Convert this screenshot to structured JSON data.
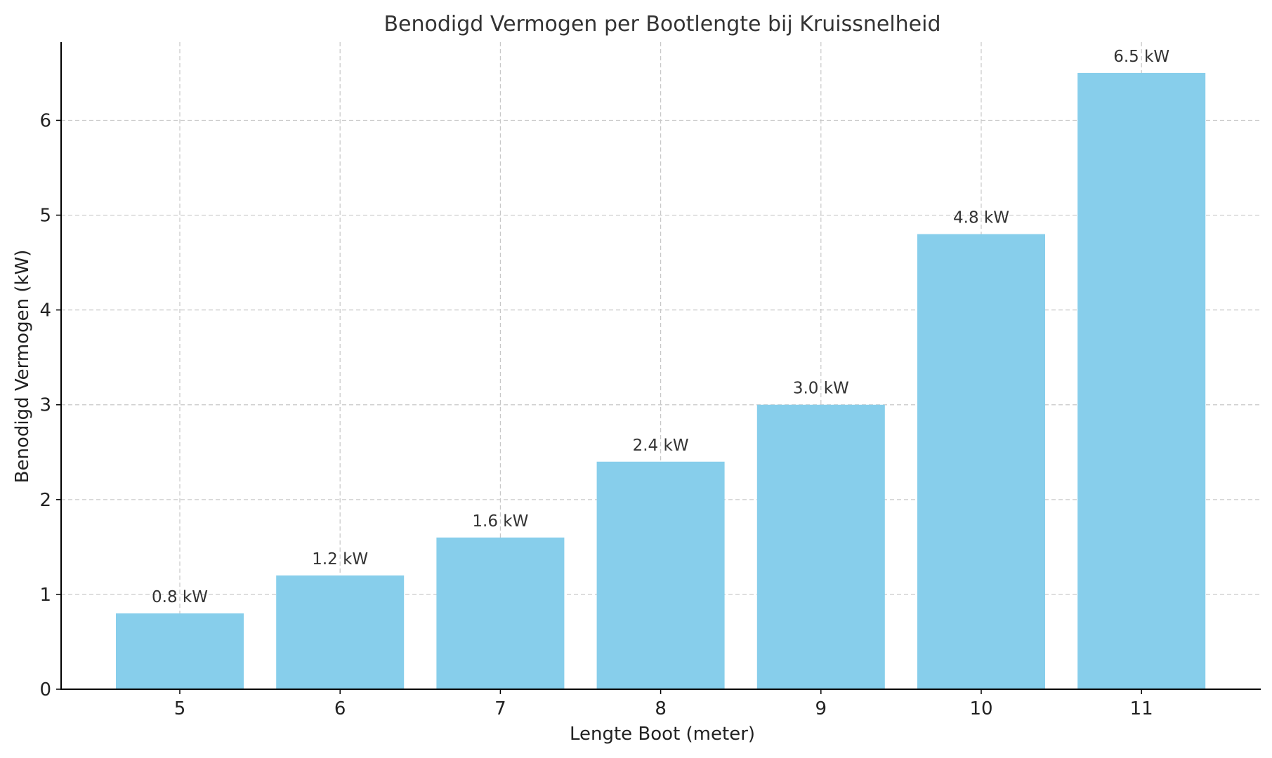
{
  "chart_data": {
    "type": "bar",
    "title": "Benodigd Vermogen per Bootlengte bij Kruissnelheid",
    "xlabel": "Lengte Boot (meter)",
    "ylabel": "Benodigd Vermogen (kW)",
    "categories": [
      "5",
      "6",
      "7",
      "8",
      "9",
      "10",
      "11"
    ],
    "values": [
      0.8,
      1.2,
      1.6,
      2.4,
      3.0,
      4.8,
      6.5
    ],
    "data_labels": [
      "0.8 kW",
      "1.2 kW",
      "1.6 kW",
      "2.4 kW",
      "3.0 kW",
      "4.8 kW",
      "6.5 kW"
    ],
    "yticks": [
      0,
      1,
      2,
      3,
      4,
      5,
      6
    ],
    "ylim": [
      0,
      6.825
    ],
    "grid": true,
    "legend": false,
    "bar_color": "#87ceeb"
  }
}
